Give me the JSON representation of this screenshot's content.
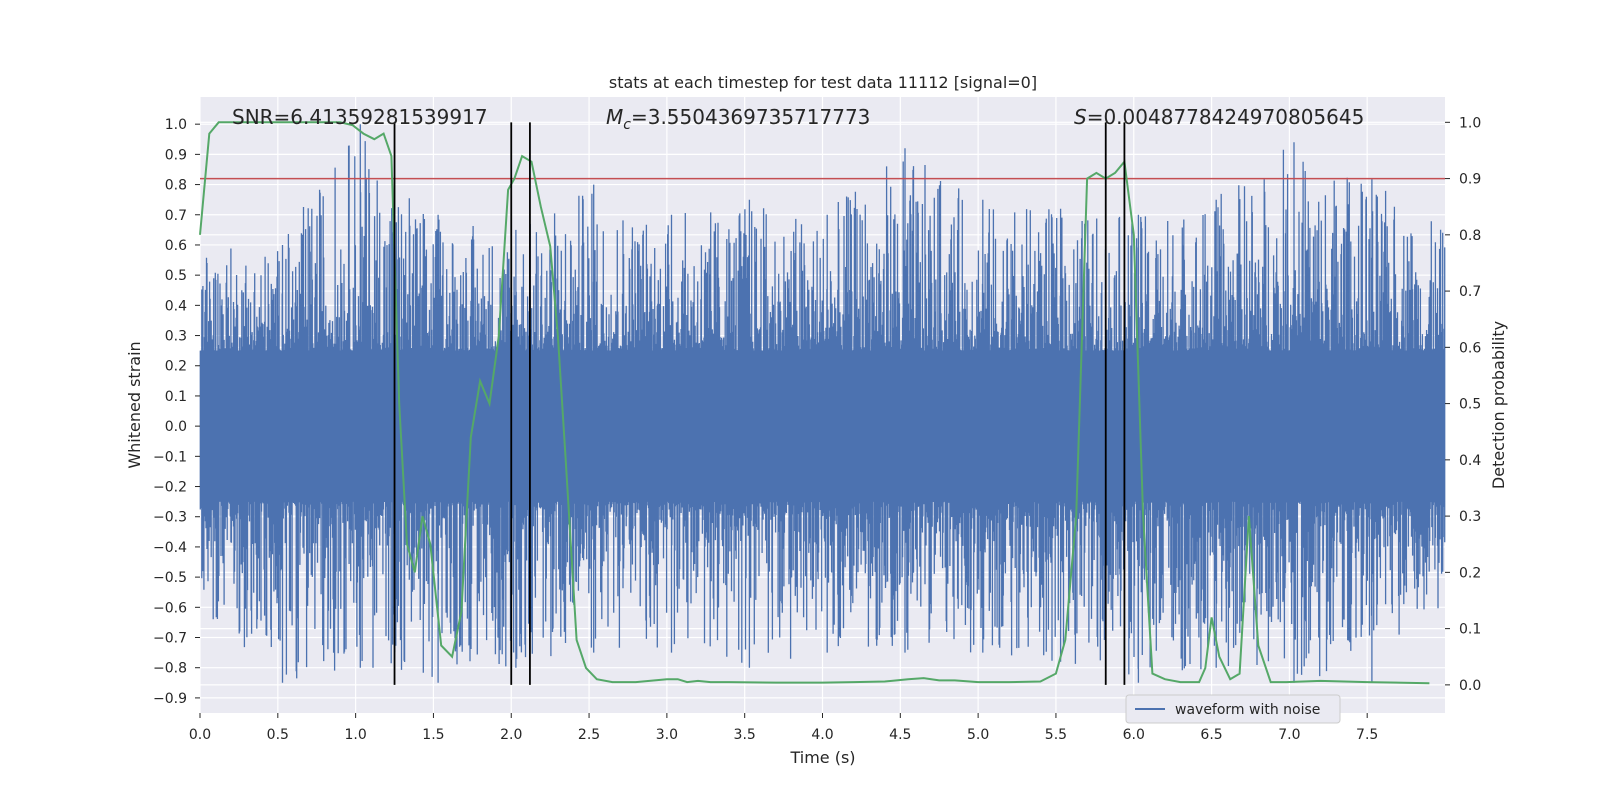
{
  "chart_data": {
    "type": "line",
    "title": "stats at each timestep for test data 11112 [signal=0]",
    "xlabel": "Time (s)",
    "ylabel_left": "Whitened strain",
    "ylabel_right": "Detection probability",
    "xlim": [
      0,
      8
    ],
    "ylim_left": [
      -0.95,
      1.09
    ],
    "ylim_right": [
      -0.05,
      1.045
    ],
    "x_ticks": [
      "0.0",
      "0.5",
      "1.0",
      "1.5",
      "2.0",
      "2.5",
      "3.0",
      "3.5",
      "4.0",
      "4.5",
      "5.0",
      "5.5",
      "6.0",
      "6.5",
      "7.0",
      "7.5"
    ],
    "y_ticks_left": [
      "1.0",
      "0.9",
      "0.8",
      "0.7",
      "0.6",
      "0.5",
      "0.4",
      "0.3",
      "0.2",
      "0.1",
      "0.0",
      "−0.1",
      "−0.2",
      "−0.3",
      "−0.4",
      "−0.5",
      "−0.6",
      "−0.7",
      "−0.8",
      "−0.9"
    ],
    "y_ticks_right": [
      "1.0",
      "0.9",
      "0.8",
      "0.7",
      "0.6",
      "0.5",
      "0.4",
      "0.3",
      "0.2",
      "0.1",
      "0.0"
    ],
    "annotations": {
      "snr": "SNR=6.41359281539917",
      "mc_symbol": "M",
      "mc_sub": "c",
      "mc_value": "=3.5504369735717773",
      "s_symbol": "S",
      "s_value": "=0.0048778424970805645"
    },
    "threshold_right": 0.9,
    "vertical_lines_s": [
      1.25,
      2.0,
      2.12,
      5.82,
      5.94
    ],
    "legend": [
      "waveform with noise"
    ],
    "colors": {
      "waveform": "#4c72b0",
      "probability": "#55a868",
      "threshold": "#c44e52",
      "vlines": "#000000",
      "axes_bg": "#eaeaf2",
      "grid": "#ffffff"
    },
    "waveform_envelope": {
      "x": [
        0.0,
        0.5,
        1.0,
        1.5,
        2.0,
        2.5,
        3.0,
        3.5,
        4.0,
        4.5,
        5.0,
        5.5,
        6.0,
        6.5,
        7.0,
        7.5,
        8.0
      ],
      "upper": [
        0.6,
        0.6,
        1.0,
        0.7,
        0.65,
        0.8,
        0.7,
        0.75,
        0.7,
        0.92,
        0.75,
        0.72,
        0.7,
        0.75,
        0.94,
        0.82,
        0.65
      ],
      "lower": [
        -0.6,
        -0.85,
        -0.8,
        -0.85,
        -0.8,
        -0.75,
        -0.75,
        -0.8,
        -0.75,
        -0.75,
        -0.75,
        -0.78,
        -0.85,
        -0.8,
        -0.85,
        -0.85,
        -0.6
      ]
    },
    "probability": {
      "x": [
        0.0,
        0.06,
        0.12,
        0.2,
        0.3,
        0.4,
        0.5,
        0.6,
        0.7,
        0.8,
        0.9,
        0.98,
        1.05,
        1.12,
        1.18,
        1.23,
        1.28,
        1.33,
        1.38,
        1.43,
        1.48,
        1.55,
        1.62,
        1.68,
        1.74,
        1.8,
        1.86,
        1.92,
        1.98,
        2.02,
        2.07,
        2.13,
        2.19,
        2.25,
        2.3,
        2.35,
        2.42,
        2.48,
        2.55,
        2.65,
        2.8,
        3.0,
        3.07,
        3.13,
        3.2,
        3.28,
        3.4,
        3.7,
        4.0,
        4.2,
        4.4,
        4.55,
        4.65,
        4.7,
        4.75,
        4.85,
        5.0,
        5.2,
        5.4,
        5.5,
        5.56,
        5.63,
        5.7,
        5.76,
        5.82,
        5.88,
        5.94,
        6.0,
        6.06,
        6.12,
        6.2,
        6.3,
        6.42,
        6.46,
        6.5,
        6.55,
        6.62,
        6.68,
        6.74,
        6.8,
        6.88,
        6.98,
        7.2,
        7.5,
        7.9
      ],
      "y": [
        0.8,
        0.98,
        1.0,
        1.0,
        1.0,
        1.0,
        1.0,
        1.0,
        1.0,
        1.0,
        1.0,
        0.995,
        0.98,
        0.97,
        0.98,
        0.94,
        0.5,
        0.25,
        0.2,
        0.3,
        0.25,
        0.07,
        0.05,
        0.13,
        0.44,
        0.54,
        0.5,
        0.62,
        0.88,
        0.9,
        0.94,
        0.93,
        0.85,
        0.78,
        0.62,
        0.4,
        0.08,
        0.03,
        0.01,
        0.005,
        0.005,
        0.01,
        0.01,
        0.005,
        0.007,
        0.005,
        0.005,
        0.004,
        0.004,
        0.005,
        0.006,
        0.01,
        0.012,
        0.01,
        0.008,
        0.008,
        0.005,
        0.005,
        0.006,
        0.02,
        0.08,
        0.3,
        0.9,
        0.91,
        0.9,
        0.91,
        0.93,
        0.8,
        0.3,
        0.02,
        0.01,
        0.005,
        0.005,
        0.03,
        0.12,
        0.05,
        0.01,
        0.02,
        0.3,
        0.07,
        0.005,
        0.005,
        0.007,
        0.005,
        0.003
      ]
    }
  }
}
